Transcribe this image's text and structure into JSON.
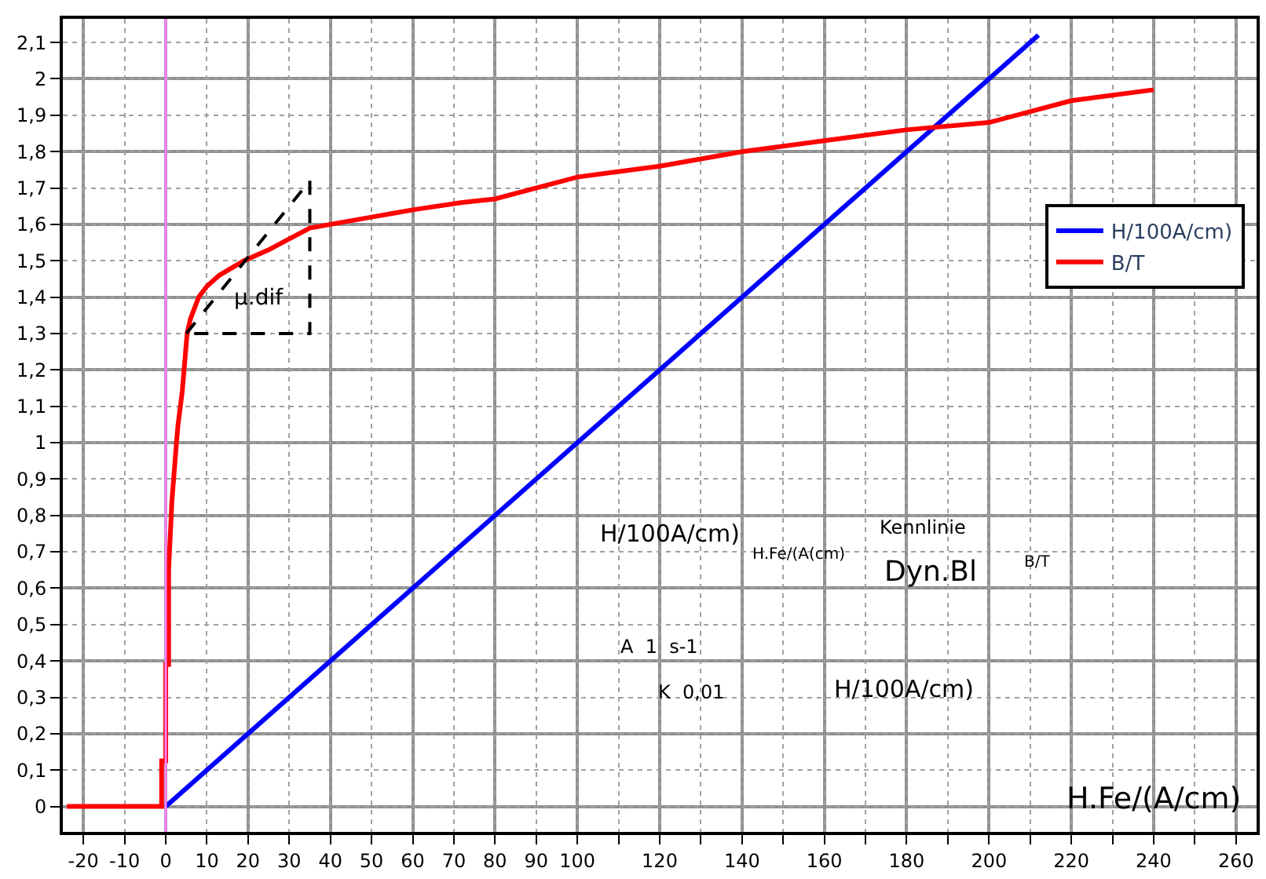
{
  "chart_data": {
    "type": "line",
    "xlabel": "H.Fe/(A/cm)",
    "x": [
      -24,
      -1,
      -1,
      0,
      0,
      0.7,
      0.7,
      1.5,
      2.2,
      2.6,
      3,
      4,
      5.2,
      6,
      8,
      10,
      13,
      19,
      25,
      30,
      35,
      40,
      50,
      60,
      72,
      80,
      100,
      120,
      140,
      160,
      180,
      200,
      220,
      240
    ],
    "series": [
      {
        "name": "H/100A/cm)",
        "color": "#0000ff",
        "x": [
          0,
          212
        ],
        "values": [
          0,
          2.12
        ]
      },
      {
        "name": "B/T",
        "color": "#ff0000",
        "values": [
          0,
          0,
          0.125,
          0.125,
          0.39,
          0.39,
          0.65,
          0.84,
          0.94,
          1.0,
          1.05,
          1.14,
          1.3,
          1.34,
          1.4,
          1.43,
          1.46,
          1.5,
          1.53,
          1.56,
          1.59,
          1.6,
          1.62,
          1.64,
          1.66,
          1.67,
          1.73,
          1.76,
          1.8,
          1.83,
          1.86,
          1.88,
          1.94,
          1.97
        ]
      },
      {
        "color": "#000000",
        "line_style": "dashed",
        "x": [
          5,
          35
        ],
        "values": [
          1.3,
          1.72
        ]
      },
      {
        "color": "#000000",
        "line_style": "dashed",
        "x": [
          35,
          35,
          5
        ],
        "values": [
          1.72,
          1.3,
          1.3
        ]
      }
    ],
    "annotations": [
      "μ.dif",
      "H/100A/cm)",
      "Kennlinie",
      "H.Fe/(A(cm)",
      "Dyn.Bl",
      "B/T",
      "A  1  s-1",
      "K  0,01",
      "H/100A/cm)"
    ],
    "ref_lines": [
      {
        "axis": "x",
        "value": 0,
        "color": "#ff80ff"
      }
    ],
    "xlim": [
      -25,
      265
    ],
    "ylim": [
      -0.07,
      2.165
    ],
    "xticks": [
      -20,
      -10,
      0,
      10,
      20,
      30,
      40,
      50,
      60,
      70,
      80,
      90,
      100,
      {
        "value": 110,
        "label": null
      },
      120,
      {
        "value": 130,
        "label": null
      },
      140,
      {
        "value": 150,
        "label": null
      },
      160,
      {
        "value": 170,
        "label": null
      },
      180,
      {
        "value": 190,
        "label": null
      },
      200,
      {
        "value": 210,
        "label": null
      },
      220,
      {
        "value": 230,
        "label": null
      },
      240,
      {
        "value": 250,
        "label": null
      },
      260
    ],
    "yticks": [
      0,
      {
        "value": 0.1,
        "label": "0,1"
      },
      {
        "value": 0.2,
        "label": "0,2"
      },
      {
        "value": 0.3,
        "label": "0,3"
      },
      {
        "value": 0.4,
        "label": "0,4"
      },
      {
        "value": 0.5,
        "label": "0,5"
      },
      {
        "value": 0.6,
        "label": "0,6"
      },
      {
        "value": 0.7,
        "label": "0,7"
      },
      {
        "value": 0.8,
        "label": "0,8"
      },
      {
        "value": 0.9,
        "label": "0,9"
      },
      1,
      {
        "value": 1.1,
        "label": "1,1"
      },
      {
        "value": 1.2,
        "label": "1,2"
      },
      {
        "value": 1.3,
        "label": "1,3"
      },
      {
        "value": 1.4,
        "label": "1,4"
      },
      {
        "value": 1.5,
        "label": "1,5"
      },
      {
        "value": 1.6,
        "label": "1,6"
      },
      {
        "value": 1.7,
        "label": "1,7"
      },
      {
        "value": 1.8,
        "label": "1,8"
      },
      {
        "value": 1.9,
        "label": "1,9"
      },
      2,
      {
        "value": 2.1,
        "label": "2,1"
      }
    ],
    "grid": true,
    "legend": "right"
  }
}
